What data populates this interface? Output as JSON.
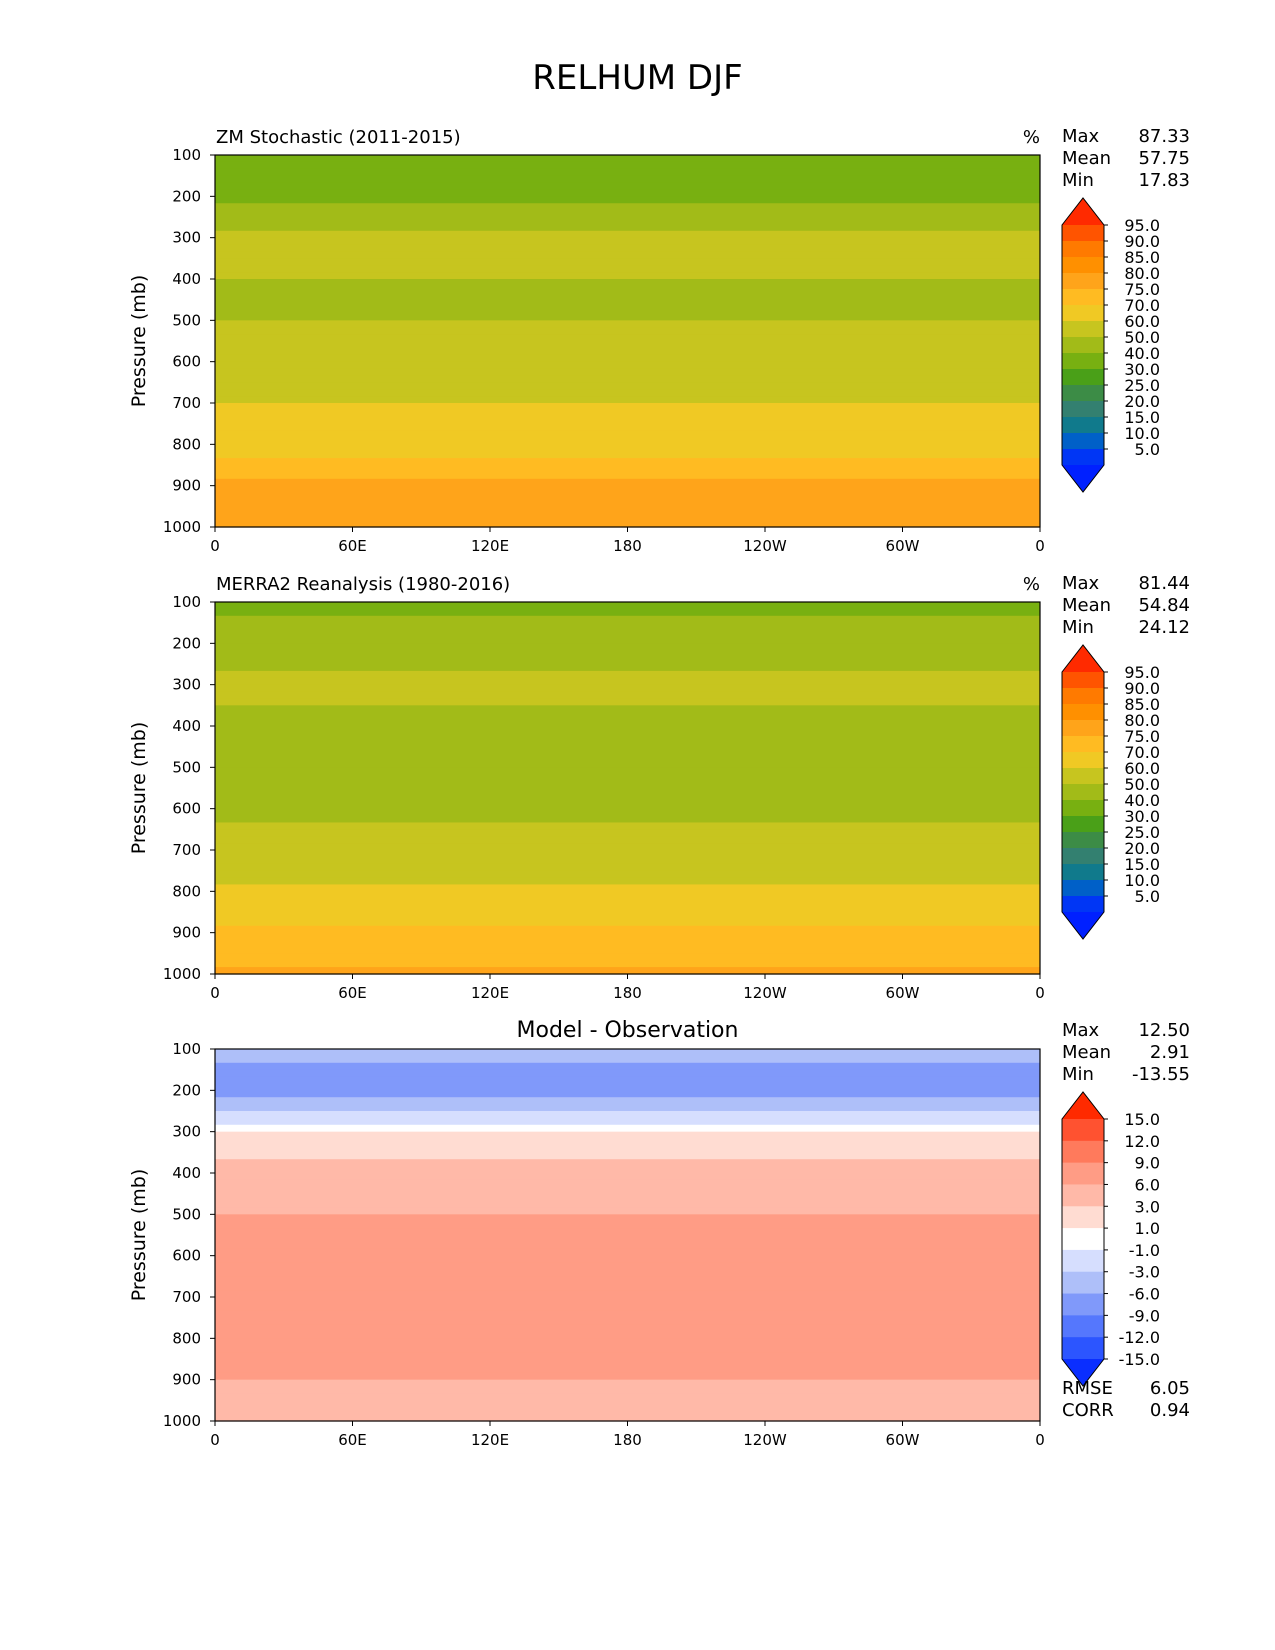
{
  "title": "RELHUM DJF",
  "chart_data": [
    {
      "type": "heatmap",
      "title": "ZM Stochastic (2011-2015)",
      "units": "%",
      "ylabel": "Pressure (mb)",
      "x_ticks": [
        "0",
        "60E",
        "120E",
        "180",
        "120W",
        "60W",
        "0"
      ],
      "y_ticks": [
        "100",
        "200",
        "300",
        "400",
        "500",
        "600",
        "700",
        "800",
        "900",
        "1000"
      ],
      "ylim": [
        1000,
        100
      ],
      "stats": [
        {
          "label": "Max",
          "value": "87.33"
        },
        {
          "label": "Mean",
          "value": "57.75"
        },
        {
          "label": "Min",
          "value": "17.83"
        }
      ],
      "colorbar_levels": [
        "95.0",
        "90.0",
        "85.0",
        "80.0",
        "75.0",
        "70.0",
        "60.0",
        "50.0",
        "40.0",
        "30.0",
        "25.0",
        "20.0",
        "15.0",
        "10.0",
        "5.0"
      ],
      "colorbar_colors": [
        "#ff2a00",
        "#ff5400",
        "#ff7a00",
        "#ff9000",
        "#ffa41a",
        "#ffbb22",
        "#f0c924",
        "#c7c51f",
        "#a2bb18",
        "#78b011",
        "#4aa018",
        "#3c8c46",
        "#338070",
        "#107a8c",
        "#0060c8",
        "#0036f5",
        "#0020ff"
      ],
      "profile_levels": [
        100,
        200,
        300,
        400,
        500,
        600,
        700,
        800,
        900,
        1000
      ],
      "profile_values": [
        32,
        38,
        52,
        50,
        50,
        52,
        60,
        68,
        76,
        79
      ]
    },
    {
      "type": "heatmap",
      "title": "MERRA2 Reanalysis (1980-2016)",
      "units": "%",
      "ylabel": "Pressure (mb)",
      "x_ticks": [
        "0",
        "60E",
        "120E",
        "180",
        "120W",
        "60W",
        "0"
      ],
      "y_ticks": [
        "100",
        "200",
        "300",
        "400",
        "500",
        "600",
        "700",
        "800",
        "900",
        "1000"
      ],
      "ylim": [
        1000,
        100
      ],
      "stats": [
        {
          "label": "Max",
          "value": "81.44"
        },
        {
          "label": "Mean",
          "value": "54.84"
        },
        {
          "label": "Min",
          "value": "24.12"
        }
      ],
      "colorbar_levels": [
        "95.0",
        "90.0",
        "85.0",
        "80.0",
        "75.0",
        "70.0",
        "60.0",
        "50.0",
        "40.0",
        "30.0",
        "25.0",
        "20.0",
        "15.0",
        "10.0",
        "5.0"
      ],
      "colorbar_colors": [
        "#ff2a00",
        "#ff5400",
        "#ff7a00",
        "#ff9000",
        "#ffa41a",
        "#ffbb22",
        "#f0c924",
        "#c7c51f",
        "#a2bb18",
        "#78b011",
        "#4aa018",
        "#3c8c46",
        "#338070",
        "#107a8c",
        "#0060c8",
        "#0036f5",
        "#0020ff"
      ],
      "profile_levels": [
        100,
        200,
        300,
        400,
        500,
        600,
        700,
        800,
        900,
        1000
      ],
      "profile_values": [
        38,
        46,
        52,
        48,
        47,
        48,
        53,
        62,
        72,
        76
      ]
    },
    {
      "type": "heatmap",
      "title": "Model - Observation",
      "units": "",
      "ylabel": "Pressure (mb)",
      "x_ticks": [
        "0",
        "60E",
        "120E",
        "180",
        "120W",
        "60W",
        "0"
      ],
      "y_ticks": [
        "100",
        "200",
        "300",
        "400",
        "500",
        "600",
        "700",
        "800",
        "900",
        "1000"
      ],
      "ylim": [
        1000,
        100
      ],
      "stats": [
        {
          "label": "Max",
          "value": "12.50"
        },
        {
          "label": "Mean",
          "value": "2.91"
        },
        {
          "label": "Min",
          "value": "-13.55"
        }
      ],
      "colorbar_levels": [
        "15.0",
        "12.0",
        "9.0",
        "6.0",
        "3.0",
        "1.0",
        "-1.0",
        "-3.0",
        "-6.0",
        "-9.0",
        "-12.0",
        "-15.0"
      ],
      "colorbar_colors": [
        "#ff2a00",
        "#ff5230",
        "#ff7a5c",
        "#ff9c85",
        "#ffb9a8",
        "#ffdcd2",
        "#ffffff",
        "#d6defe",
        "#aebff9",
        "#8099fa",
        "#5577fd",
        "#2c55ff",
        "#0a2eff"
      ],
      "profile_levels": [
        100,
        200,
        300,
        400,
        500,
        600,
        700,
        800,
        900,
        1000
      ],
      "profile_values": [
        -5,
        -8,
        1,
        4,
        6,
        7,
        8,
        8,
        6,
        4
      ],
      "footer_stats": [
        {
          "label": "RMSE",
          "value": "6.05"
        },
        {
          "label": "CORR",
          "value": "0.94"
        }
      ]
    }
  ]
}
